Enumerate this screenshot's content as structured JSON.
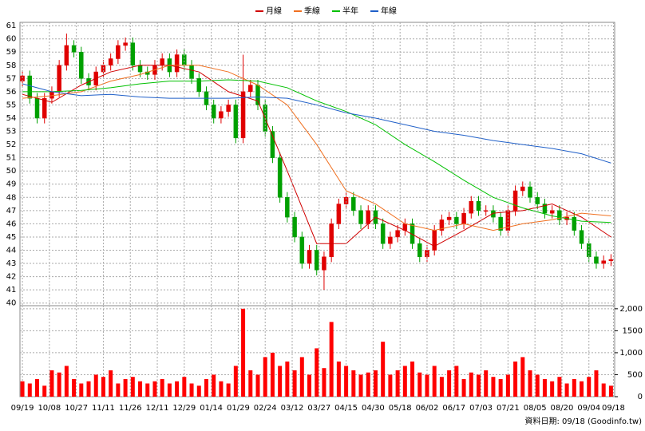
{
  "chart_data": [
    {
      "type": "candlestick",
      "xlim": [
        -1,
        241.5
      ],
      "ylim": [
        39.8,
        61.25
      ],
      "yticks": [
        40,
        41,
        42,
        43,
        44,
        45,
        46,
        47,
        48,
        49,
        50,
        51,
        52,
        53,
        54,
        55,
        56,
        57,
        58,
        59,
        60,
        61
      ],
      "grid": true,
      "legend": "top",
      "up_color": "#e00000",
      "down_color": "#00a000",
      "x": [
        0,
        3,
        6,
        9,
        12,
        15,
        18,
        21,
        24,
        27,
        30,
        33,
        36,
        39,
        42,
        45,
        48,
        51,
        54,
        57,
        60,
        63,
        66,
        69,
        72,
        75,
        78,
        81,
        84,
        87,
        90,
        93,
        96,
        99,
        102,
        105,
        108,
        111,
        114,
        117,
        120,
        123,
        126,
        129,
        132,
        135,
        138,
        141,
        144,
        147,
        150,
        153,
        156,
        159,
        162,
        165,
        168,
        171,
        174,
        177,
        180,
        183,
        186,
        189,
        192,
        195,
        198,
        201,
        204,
        207,
        210,
        213,
        216,
        219,
        222,
        225,
        228,
        231,
        234,
        237,
        240
      ],
      "open": [
        56.8,
        57.2,
        55.5,
        54,
        55.5,
        56,
        58,
        59.5,
        59,
        57,
        56.5,
        57.5,
        58,
        58.5,
        59.5,
        59.7,
        58,
        57.5,
        57.3,
        58,
        58.5,
        57.5,
        58.8,
        58,
        57,
        56,
        55,
        54,
        54.5,
        55,
        52.5,
        56,
        56.5,
        55,
        53,
        51,
        48,
        46.5,
        45,
        43,
        44,
        42.5,
        43.5,
        46,
        47.5,
        48,
        47,
        46,
        47,
        46,
        44.5,
        45,
        45.5,
        46,
        44.5,
        43.5,
        44,
        45.5,
        46.3,
        46.5,
        46,
        46.8,
        47.7,
        47,
        47,
        46.5,
        45.5,
        47,
        48.5,
        48.8,
        48,
        47.5,
        46.8,
        47,
        46.3,
        46.5,
        45.5,
        44.5,
        43.5,
        43,
        43.2
      ],
      "high": [
        57.6,
        57.6,
        55.9,
        55.9,
        56.4,
        58.4,
        60.4,
        59.9,
        59.4,
        57.4,
        57.9,
        58.4,
        58.9,
        59.9,
        60.1,
        60.1,
        58.4,
        57.9,
        58.4,
        58.9,
        58.9,
        59.2,
        59.2,
        58.4,
        57.4,
        56.4,
        55.4,
        54.9,
        55.4,
        55.4,
        58.8,
        56.9,
        56.9,
        55.4,
        53.4,
        51.4,
        48.4,
        46.9,
        45.4,
        44.4,
        44.4,
        43.9,
        46.4,
        47.9,
        48.4,
        48.4,
        47.4,
        47.4,
        47.4,
        46.4,
        45.4,
        45.9,
        46.4,
        46.4,
        44.9,
        44.4,
        45.9,
        46.7,
        46.9,
        46.9,
        47.2,
        48.1,
        48.1,
        47.4,
        47.4,
        46.9,
        47.4,
        48.9,
        49.2,
        49.2,
        48.4,
        47.9,
        47.4,
        47.4,
        46.9,
        46.9,
        45.9,
        44.9,
        43.9,
        43.6,
        43.7
      ],
      "low": [
        56.4,
        55.1,
        53.6,
        53.6,
        55.1,
        55.6,
        57.6,
        58.6,
        56.6,
        56.1,
        56.1,
        57.1,
        57.6,
        58.1,
        59.1,
        57.6,
        57.1,
        56.9,
        56.9,
        57.6,
        57.1,
        57.1,
        57.6,
        56.6,
        55.6,
        54.6,
        53.6,
        53.6,
        54.1,
        52.1,
        52.1,
        55.6,
        54.6,
        52.6,
        50.6,
        47.6,
        46.1,
        44.6,
        42.6,
        42.6,
        42.1,
        41,
        43.1,
        45.6,
        47.1,
        46.6,
        45.6,
        45.6,
        45.6,
        44.1,
        44.1,
        44.6,
        45.1,
        44.1,
        43.1,
        43.1,
        43.6,
        45.1,
        45.9,
        45.6,
        45.6,
        46.4,
        46.6,
        46.6,
        46.1,
        45.1,
        45.1,
        46.6,
        48.1,
        47.6,
        47.1,
        46.4,
        46.4,
        45.9,
        45.9,
        45.1,
        44.1,
        43.1,
        42.6,
        42.6,
        42.8
      ],
      "close": [
        57.2,
        55.5,
        54,
        55.5,
        56,
        58,
        59.5,
        59,
        57,
        56.5,
        57.5,
        58,
        58.5,
        59.5,
        59.7,
        58,
        57.5,
        57.3,
        58,
        58.5,
        57.5,
        58.8,
        58,
        57,
        56,
        55,
        54,
        54.5,
        55,
        52.5,
        56,
        56.5,
        55,
        53,
        51,
        48,
        46.5,
        45,
        43,
        44,
        42.5,
        43.5,
        46,
        47.5,
        48,
        47,
        46,
        47,
        46,
        44.5,
        45,
        45.5,
        46,
        44.5,
        43.5,
        44,
        45.5,
        46.3,
        46.5,
        46,
        46.8,
        47.7,
        47,
        47,
        46.5,
        45.5,
        47,
        48.5,
        48.8,
        48,
        47.5,
        46.8,
        47,
        46.3,
        46.5,
        45.5,
        44.5,
        43.5,
        43,
        43.2,
        43.3
      ],
      "series": [
        {
          "name": "月線",
          "color": "#d00000",
          "x": [
            0,
            12,
            24,
            36,
            48,
            60,
            72,
            84,
            96,
            108,
            120,
            132,
            144,
            156,
            168,
            180,
            192,
            204,
            216,
            228,
            240
          ],
          "values": [
            55.8,
            55.2,
            56.5,
            57.5,
            58,
            58,
            57.5,
            56,
            55.3,
            50,
            44.5,
            44.5,
            46.5,
            45.5,
            44.3,
            45.5,
            46.8,
            47,
            47.5,
            46.5,
            45
          ]
        },
        {
          "name": "季線",
          "color": "#f07020",
          "x": [
            0,
            12,
            24,
            36,
            48,
            60,
            72,
            84,
            96,
            108,
            120,
            132,
            144,
            156,
            168,
            180,
            192,
            204,
            216,
            228,
            240
          ],
          "values": [
            55.5,
            55.7,
            56,
            56.8,
            57.3,
            58,
            58,
            57.5,
            56.5,
            55,
            52,
            48.5,
            47.5,
            46,
            45.5,
            46,
            45.5,
            46,
            46.3,
            46.8,
            46.6
          ]
        },
        {
          "name": "半年",
          "color": "#00c000",
          "x": [
            0,
            12,
            24,
            36,
            48,
            60,
            72,
            84,
            96,
            108,
            120,
            132,
            144,
            156,
            168,
            180,
            192,
            204,
            216,
            228,
            240
          ],
          "values": [
            56,
            56,
            56.1,
            56.3,
            56.6,
            56.8,
            56.8,
            56.9,
            56.8,
            56.3,
            55.3,
            54.5,
            53.5,
            52,
            50.7,
            49.3,
            48,
            47.2,
            46.6,
            46.2,
            46.1
          ]
        },
        {
          "name": "年線",
          "color": "#1f5fc8",
          "x": [
            0,
            12,
            24,
            36,
            48,
            60,
            72,
            84,
            96,
            108,
            120,
            132,
            144,
            156,
            168,
            180,
            192,
            204,
            216,
            228,
            240
          ],
          "values": [
            56.6,
            56,
            55.7,
            55.8,
            55.6,
            55.5,
            55.5,
            55.5,
            55.6,
            55.5,
            55,
            54.4,
            54,
            53.5,
            53,
            52.7,
            52.3,
            52,
            51.7,
            51.3,
            50.6
          ]
        }
      ]
    },
    {
      "type": "bar",
      "color": "#ff0000",
      "grid": true,
      "xlim": [
        -1,
        241.5
      ],
      "ylim": [
        0,
        2070
      ],
      "yticks": [
        0,
        500,
        {
          "value": 1000,
          "label": "1,000"
        },
        1500,
        {
          "value": 2000,
          "label": "2,000"
        }
      ],
      "xticks": [
        {
          "value": 0,
          "label": "09/19"
        },
        {
          "value": 11,
          "label": "10/08"
        },
        {
          "value": 22,
          "label": "10/27"
        },
        {
          "value": 33,
          "label": "11/11"
        },
        {
          "value": 44,
          "label": "11/26"
        },
        {
          "value": 55,
          "label": "12/11"
        },
        {
          "value": 66,
          "label": "12/29"
        },
        {
          "value": 77,
          "label": "01/14"
        },
        {
          "value": 88,
          "label": "01/29"
        },
        {
          "value": 99,
          "label": "02/24"
        },
        {
          "value": 110,
          "label": "03/12"
        },
        {
          "value": 121,
          "label": "03/27"
        },
        {
          "value": 132,
          "label": "04/15"
        },
        {
          "value": 143,
          "label": "04/30"
        },
        {
          "value": 154,
          "label": "05/18"
        },
        {
          "value": 165,
          "label": "06/02"
        },
        {
          "value": 176,
          "label": "06/17"
        },
        {
          "value": 187,
          "label": "07/03"
        },
        {
          "value": 198,
          "label": "07/21"
        },
        {
          "value": 209,
          "label": "08/05"
        },
        {
          "value": 220,
          "label": "08/20"
        },
        {
          "value": 231,
          "label": "09/04"
        },
        {
          "value": 241,
          "label": "09/18"
        }
      ],
      "x": [
        0,
        3,
        6,
        9,
        12,
        15,
        18,
        21,
        24,
        27,
        30,
        33,
        36,
        39,
        42,
        45,
        48,
        51,
        54,
        57,
        60,
        63,
        66,
        69,
        72,
        75,
        78,
        81,
        84,
        87,
        90,
        93,
        96,
        99,
        102,
        105,
        108,
        111,
        114,
        117,
        120,
        123,
        126,
        129,
        132,
        135,
        138,
        141,
        144,
        147,
        150,
        153,
        156,
        159,
        162,
        165,
        168,
        171,
        174,
        177,
        180,
        183,
        186,
        189,
        192,
        195,
        198,
        201,
        204,
        207,
        210,
        213,
        216,
        219,
        222,
        225,
        228,
        231,
        234,
        237,
        240
      ],
      "values": [
        350,
        300,
        400,
        250,
        600,
        550,
        700,
        400,
        300,
        350,
        500,
        450,
        600,
        300,
        400,
        450,
        350,
        300,
        350,
        400,
        300,
        350,
        450,
        300,
        250,
        400,
        500,
        350,
        300,
        700,
        2000,
        600,
        500,
        900,
        1000,
        700,
        800,
        600,
        900,
        500,
        1100,
        650,
        1700,
        800,
        700,
        600,
        500,
        550,
        600,
        1250,
        500,
        600,
        700,
        800,
        550,
        500,
        700,
        450,
        600,
        700,
        400,
        550,
        500,
        600,
        450,
        400,
        500,
        800,
        900,
        600,
        500,
        400,
        350,
        450,
        300,
        400,
        350,
        450,
        600,
        300,
        250
      ],
      "footer": "資料日期: 09/18 (Goodinfo.tw)"
    }
  ]
}
